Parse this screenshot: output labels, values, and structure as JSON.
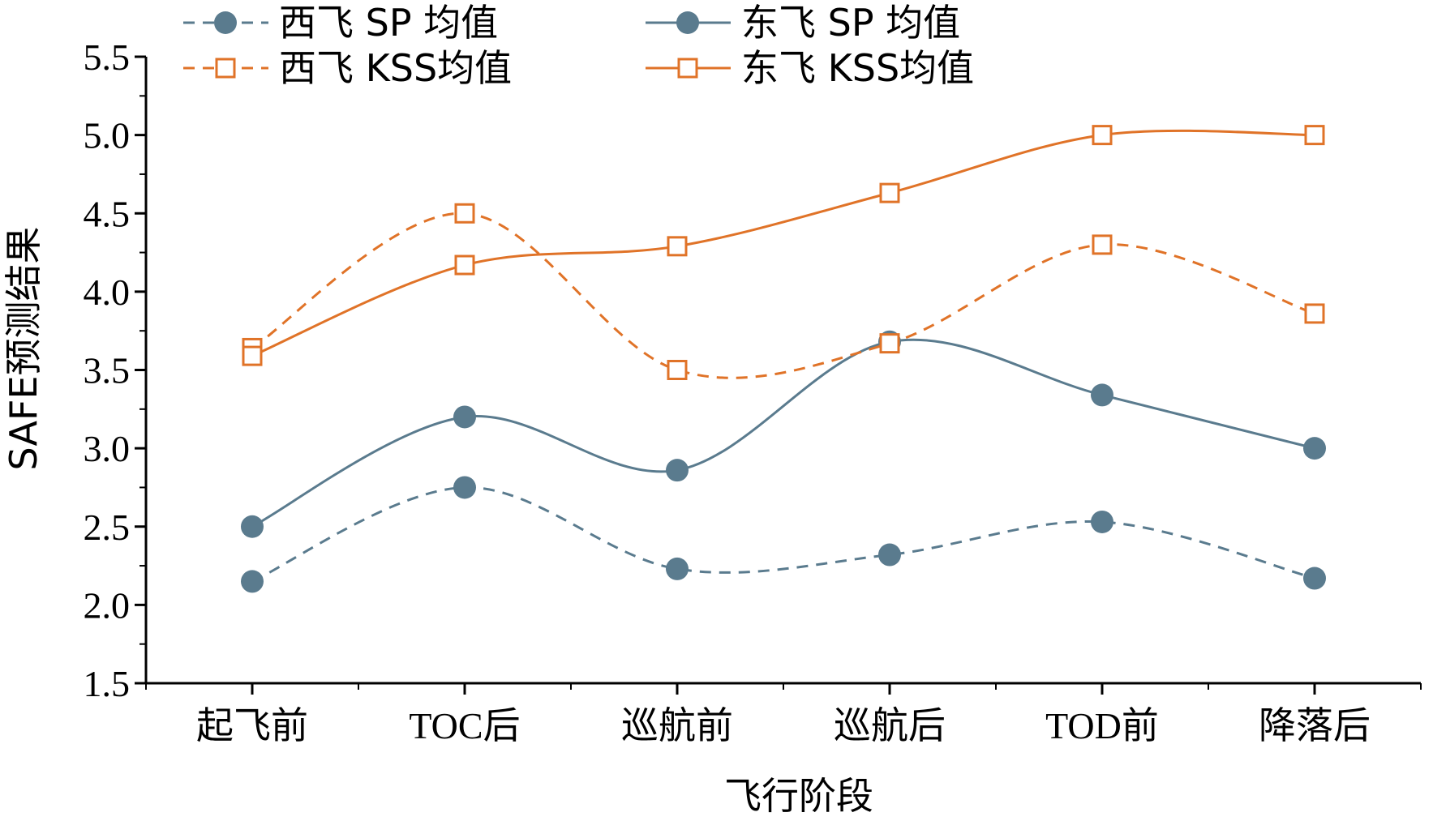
{
  "chart_data": {
    "type": "line",
    "xlabel": "飞行阶段",
    "ylabel": "SAFE预测结果",
    "categories": [
      "起飞前",
      "TOC后",
      "巡航前",
      "巡航后",
      "TOD前",
      "降落后"
    ],
    "ylim": [
      1.5,
      5.5
    ],
    "yticks": [
      "1.5",
      "2.0",
      "2.5",
      "3.0",
      "3.5",
      "4.0",
      "4.5",
      "5.0",
      "5.5"
    ],
    "legend_position": "top",
    "series": [
      {
        "name": "西飞 SP 均值",
        "values": [
          2.15,
          2.75,
          2.23,
          2.32,
          2.53,
          2.17
        ],
        "color": "#5a7b8e",
        "dash": true,
        "marker": "filled-circle"
      },
      {
        "name": "东飞 SP 均值",
        "values": [
          2.5,
          3.2,
          2.86,
          3.68,
          3.34,
          3.0
        ],
        "color": "#5a7b8e",
        "dash": false,
        "marker": "filled-circle"
      },
      {
        "name": "西飞 KSS均值",
        "values": [
          3.64,
          4.5,
          3.5,
          3.67,
          4.3,
          3.86
        ],
        "color": "#e07328",
        "dash": true,
        "marker": "open-square"
      },
      {
        "name": "东飞 KSS均值",
        "values": [
          3.59,
          4.17,
          4.29,
          4.63,
          5.0,
          5.0
        ],
        "color": "#e07328",
        "dash": false,
        "marker": "open-square"
      }
    ]
  }
}
